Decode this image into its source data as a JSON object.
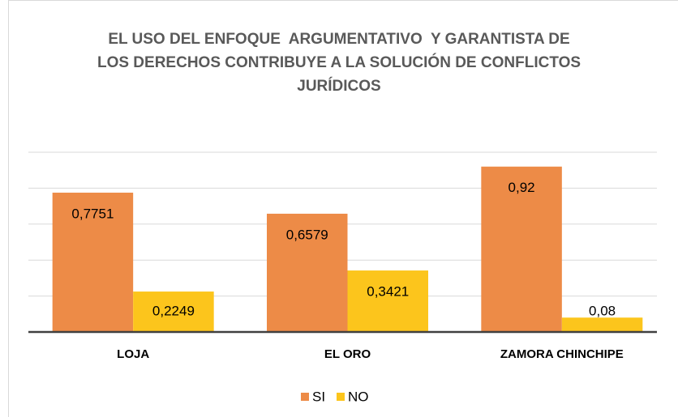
{
  "chart_data": {
    "type": "bar",
    "title": "EL USO DEL ENFOQUE  ARGUMENTATIVO  Y GARANTISTA DE LOS DERECHOS CONTRIBUYE A LA SOLUCIÓN DE CONFLICTOS JURÍDICOS",
    "categories": [
      "LOJA",
      "EL ORO",
      "ZAMORA CHINCHIPE"
    ],
    "series": [
      {
        "name": "SI",
        "color": "#ed8b47",
        "values": [
          0.7751,
          0.6579,
          0.92
        ],
        "value_labels": [
          "0,7751",
          "0,6579",
          "0,92"
        ]
      },
      {
        "name": "NO",
        "color": "#fcc51c",
        "values": [
          0.2249,
          0.3421,
          0.08
        ],
        "value_labels": [
          "0,2249",
          "0,3421",
          "0,08"
        ]
      }
    ],
    "ylim": [
      0,
      1
    ],
    "yticks": [
      0,
      0.2,
      0.4,
      0.6,
      0.8,
      1
    ],
    "grid": true,
    "legend": "bottom"
  }
}
